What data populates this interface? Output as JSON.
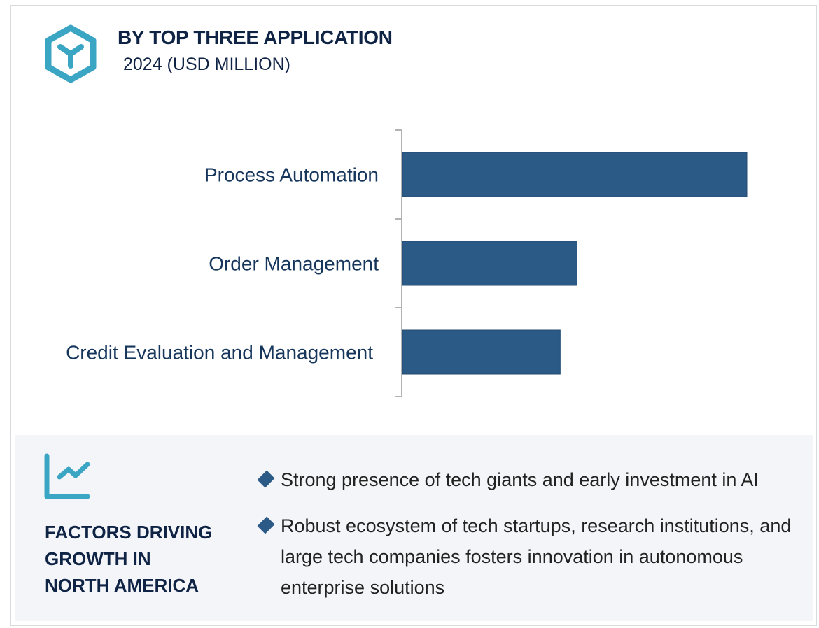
{
  "header": {
    "title": "BY TOP THREE APPLICATION",
    "subtitle": "2024 (USD MILLION)",
    "icon": "hexagon-y-logo-icon"
  },
  "colors": {
    "accent": "#3ba6c4",
    "bar": "#2c5a87",
    "title": "#0f2345",
    "panel_bg": "#f4f5f9",
    "axis": "#b3b3b3"
  },
  "chart_data": {
    "type": "bar",
    "orientation": "horizontal",
    "title": "BY TOP THREE APPLICATION",
    "subtitle": "2024 (USD MILLION)",
    "categories": [
      "Process Automation",
      "Order Management",
      "Credit Evaluation and Management"
    ],
    "values": [
      100,
      50.7,
      45.8
    ],
    "value_note": "relative bar lengths (no value labels shown); largest = 100",
    "xlabel": "",
    "ylabel": "",
    "xlim": [
      0,
      100
    ],
    "grid": false,
    "legend": "none"
  },
  "factors": {
    "icon": "line-chart-growth-icon",
    "title_lines": [
      "FACTORS DRIVING",
      "GROWTH IN",
      "NORTH AMERICA"
    ],
    "bullets": [
      "Strong presence of tech giants and early investment in AI",
      "Robust ecosystem of tech startups, research institutions, and large tech companies fosters innovation in autonomous enterprise solutions"
    ]
  }
}
